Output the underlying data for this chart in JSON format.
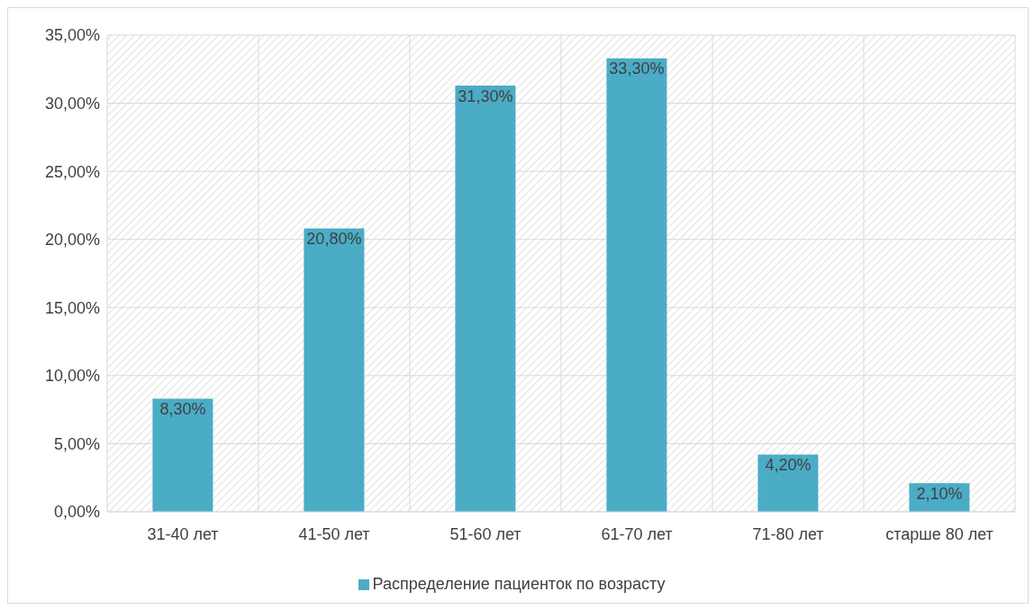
{
  "chart_data": {
    "type": "bar",
    "categories": [
      "31-40 лет",
      "41-50 лет",
      "51-60 лет",
      "61-70 лет",
      "71-80 лет",
      "старше 80 лет"
    ],
    "series": [
      {
        "name": "Распределение пациенток по возрасту",
        "color": "#4bacc6",
        "values": [
          8.3,
          20.8,
          31.3,
          33.3,
          4.2,
          2.1
        ],
        "value_labels": [
          "8,30%",
          "20,80%",
          "31,30%",
          "33,30%",
          "4,20%",
          "2,10%"
        ]
      }
    ],
    "ylim": [
      0,
      35
    ],
    "yticks": [
      {
        "value": 0,
        "label": "0,00%"
      },
      {
        "value": 5,
        "label": "5,00%"
      },
      {
        "value": 10,
        "label": "10,00%"
      },
      {
        "value": 15,
        "label": "15,00%"
      },
      {
        "value": 20,
        "label": "20,00%"
      },
      {
        "value": 25,
        "label": "25,00%"
      },
      {
        "value": 30,
        "label": "30,00%"
      },
      {
        "value": 35,
        "label": "35,00%"
      }
    ],
    "grid": true,
    "legend": "bottom"
  }
}
